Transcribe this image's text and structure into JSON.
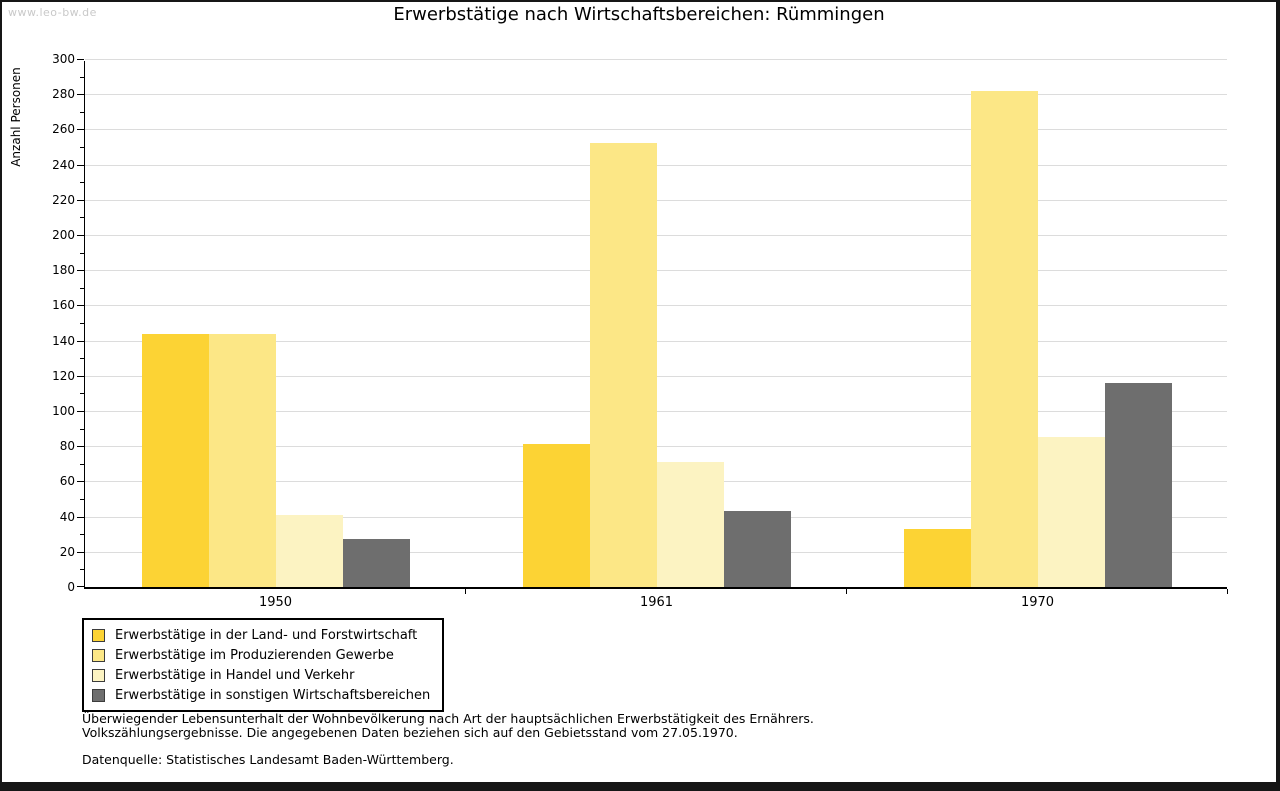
{
  "watermark": "www.leo-bw.de",
  "title": "Erwerbstätige nach Wirtschaftsbereichen: Rümmingen",
  "chart_data": {
    "type": "bar",
    "title": "Erwerbstätige nach Wirtschaftsbereichen: Rümmingen",
    "xlabel": "",
    "ylabel": "Anzahl Personen",
    "ylim": [
      0,
      300
    ],
    "ytick_step": 20,
    "minor_tick_step": 10,
    "grid": true,
    "legend_position": "bottom-left",
    "categories": [
      "1950",
      "1961",
      "1970"
    ],
    "series": [
      {
        "name": "Erwerbstätige in der Land- und Forstwirtschaft",
        "color": "#fcd334",
        "values": [
          144,
          81,
          33
        ]
      },
      {
        "name": "Erwerbstätige im Produzierenden Gewerbe",
        "color": "#fce786",
        "values": [
          144,
          252,
          282
        ]
      },
      {
        "name": "Erwerbstätige in Handel und Verkehr",
        "color": "#fcf3c2",
        "values": [
          41,
          71,
          85
        ]
      },
      {
        "name": "Erwerbstätige in sonstigen Wirtschaftsbereichen",
        "color": "#6e6e6e",
        "values": [
          27,
          43,
          116
        ]
      }
    ]
  },
  "footnote": {
    "line1": "Überwiegender Lebensunterhalt der Wohnbevölkerung nach Art der hauptsächlichen Erwerbstätigkeit des Ernährers.",
    "line2": "Volkszählungsergebnisse. Die angegebenen Daten beziehen sich auf den Gebietsstand vom 27.05.1970.",
    "source": "Datenquelle: Statistisches Landesamt Baden-Württemberg."
  }
}
